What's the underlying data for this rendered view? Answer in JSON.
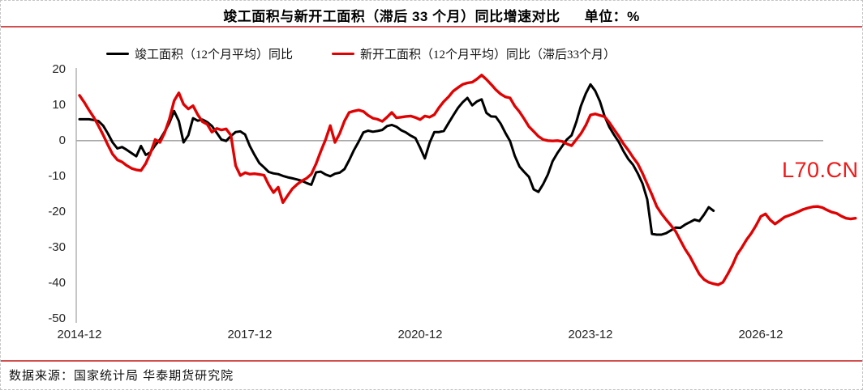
{
  "header": {
    "title": "竣工面积与新开工面积（滞后 33 个月）同比增速对比",
    "unit_label": "单位：%"
  },
  "legend": {
    "items": [
      {
        "label": "竣工面积（12个月平均）同比",
        "color": "#000000"
      },
      {
        "label": "新开工面积（12个月平均）同比（滞后33个月）",
        "color": "#e00202"
      }
    ]
  },
  "watermark": {
    "text": "L70.CN",
    "color": "#f01818"
  },
  "footer": {
    "source": "数据来源：国家统计局 华泰期货研究院"
  },
  "colors": {
    "accent_rule_red": "#d24f4f",
    "series_black": "#000000",
    "series_red": "#e00202",
    "axis_gray": "#a8a8a8"
  },
  "chart_data": {
    "type": "line",
    "title": "竣工面积与新开工面积（滞后 33 个月）同比增速对比",
    "unit": "%",
    "x_start": "2014-12",
    "x_frequency": "monthly",
    "x_tick_labels": [
      "2014-12",
      "2017-12",
      "2020-12",
      "2023-12",
      "2026-12"
    ],
    "x_tick_months": [
      0,
      36,
      72,
      108,
      144
    ],
    "y_ticks": [
      "20",
      "10",
      "0",
      "-10",
      "-20",
      "-30",
      "-40",
      "-50"
    ],
    "ylim": [
      -50,
      20
    ],
    "grid": "zero line only",
    "legend_position": "top-center",
    "series": [
      {
        "id": "completion",
        "name": "竣工面积（12个月平均）同比",
        "color": "#000000",
        "stroke_width": 3,
        "values": [
          6.0,
          6.0,
          6.0,
          5.8,
          5.5,
          4.2,
          2.0,
          -0.5,
          -2.2,
          -1.8,
          -2.6,
          -3.5,
          -4.4,
          -1.5,
          -4.0,
          -3.3,
          -1.3,
          0.3,
          2.5,
          5.0,
          8.3,
          5.5,
          -0.5,
          1.5,
          6.3,
          5.6,
          5.9,
          5.2,
          4.1,
          2.2,
          0.3,
          -0.1,
          1.3,
          2.4,
          2.6,
          1.7,
          -1.5,
          -4.0,
          -6.3,
          -7.5,
          -8.8,
          -9.2,
          -9.4,
          -9.9,
          -10.3,
          -10.6,
          -10.9,
          -11.3,
          -11.9,
          -12.4,
          -8.9,
          -8.7,
          -9.5,
          -10.0,
          -9.3,
          -9.0,
          -8.0,
          -5.5,
          -2.7,
          -0.3,
          2.3,
          2.8,
          2.5,
          2.7,
          3.0,
          4.1,
          4.4,
          3.9,
          2.9,
          2.3,
          1.4,
          0.7,
          -2.0,
          -5.0,
          -0.6,
          2.4,
          2.4,
          2.7,
          4.9,
          7.1,
          9.2,
          10.8,
          12.0,
          9.9,
          11.0,
          11.6,
          7.8,
          6.8,
          6.7,
          4.8,
          2.2,
          -0.1,
          -4.3,
          -7.3,
          -8.8,
          -10.2,
          -13.7,
          -14.4,
          -12.2,
          -9.5,
          -5.8,
          -3.5,
          -1.6,
          0.3,
          1.5,
          5.2,
          9.8,
          13.2,
          15.8,
          14.0,
          11.0,
          6.8,
          3.8,
          1.6,
          -0.4,
          -3.0,
          -5.2,
          -6.8,
          -9.2,
          -12.1,
          -16.5,
          -26.2,
          -26.4,
          -26.4,
          -26.0,
          -25.2,
          -24.4,
          -24.5,
          -23.6,
          -22.9,
          -22.2,
          -22.6,
          -20.8,
          -18.7,
          -19.7
        ]
      },
      {
        "id": "new-start",
        "name": "新开工面积（12个月平均）同比（滞后33个月）",
        "color": "#e00202",
        "stroke_width": 3.4,
        "values": [
          12.7,
          10.8,
          8.6,
          6.6,
          4.2,
          1.6,
          -1.2,
          -3.8,
          -5.4,
          -6.0,
          -7.0,
          -7.8,
          -8.2,
          -8.4,
          -6.4,
          -3.5,
          0.3,
          -0.5,
          2.2,
          6.0,
          11.2,
          13.4,
          10.2,
          8.9,
          9.8,
          7.3,
          5.3,
          4.6,
          2.4,
          3.4,
          3.0,
          3.3,
          1.5,
          -7.0,
          -9.8,
          -9.0,
          -9.4,
          -9.3,
          -9.5,
          -9.7,
          -12.4,
          -14.6,
          -13.1,
          -17.4,
          -15.4,
          -13.5,
          -12.3,
          -11.3,
          -10.6,
          -9.4,
          -6.5,
          -3.0,
          0.2,
          4.2,
          -0.5,
          2.0,
          5.5,
          7.9,
          8.3,
          8.6,
          8.2,
          7.1,
          6.3,
          6.0,
          5.4,
          6.6,
          7.9,
          6.4,
          6.6,
          6.8,
          6.9,
          6.5,
          5.9,
          6.9,
          6.6,
          7.3,
          9.3,
          11.0,
          12.3,
          13.9,
          14.9,
          15.8,
          16.2,
          16.4,
          17.3,
          18.4,
          17.2,
          15.8,
          14.3,
          13.1,
          12.3,
          12.0,
          9.7,
          8.1,
          6.1,
          3.9,
          2.6,
          1.2,
          0.3,
          0.0,
          -0.1,
          0.0,
          -0.2,
          -0.9,
          -1.4,
          0.3,
          2.0,
          4.3,
          7.2,
          7.5,
          7.1,
          6.7,
          5.1,
          3.1,
          1.2,
          -0.9,
          -2.7,
          -4.7,
          -6.5,
          -9.2,
          -12.2,
          -15.2,
          -18.5,
          -20.5,
          -22.2,
          -23.8,
          -25.5,
          -28.0,
          -30.5,
          -32.5,
          -35.0,
          -37.5,
          -39.0,
          -39.8,
          -40.2,
          -40.5,
          -39.8,
          -37.5,
          -35.0,
          -32.0,
          -30.0,
          -27.8,
          -26.0,
          -23.8,
          -21.3,
          -20.6,
          -22.3,
          -23.4,
          -22.5,
          -21.5,
          -21.0,
          -20.5,
          -19.9,
          -19.3,
          -18.9,
          -18.6,
          -18.5,
          -18.8,
          -19.5,
          -20.1,
          -20.4,
          -21.2,
          -21.8,
          -22.0,
          -21.8
        ]
      }
    ]
  }
}
